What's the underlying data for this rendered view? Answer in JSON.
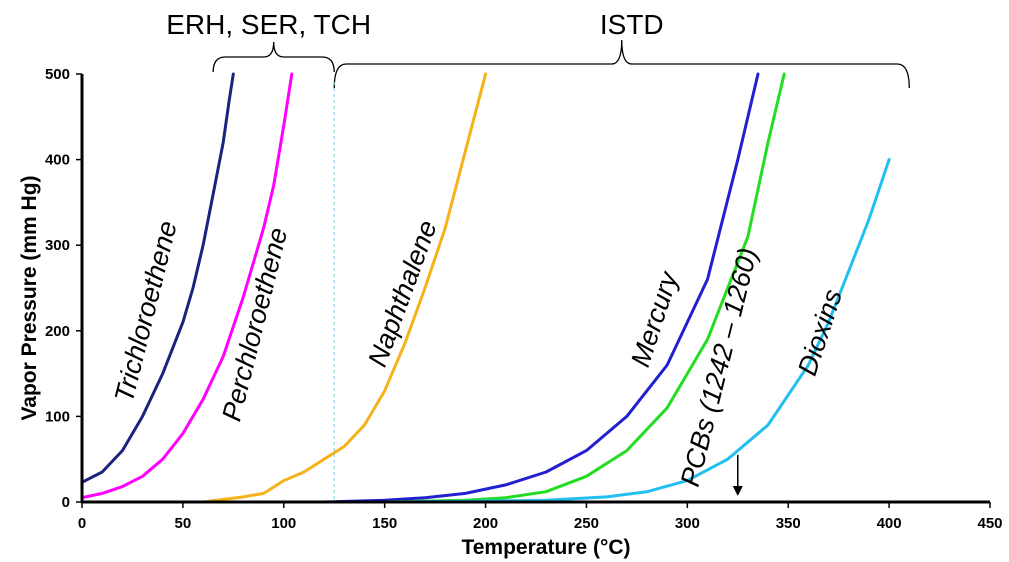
{
  "chart_data": {
    "type": "line",
    "title": "",
    "xlabel": "Temperature (°C)",
    "ylabel": "Vapor Pressure (mm Hg)",
    "xlim": [
      0,
      450
    ],
    "ylim": [
      0,
      500
    ],
    "xticks": [
      0,
      50,
      100,
      150,
      200,
      250,
      300,
      350,
      400,
      450
    ],
    "yticks": [
      0,
      100,
      200,
      300,
      400,
      500
    ],
    "grid": false,
    "legend": "none",
    "series": [
      {
        "name": "Trichloroethene",
        "color": "#1a237e",
        "x": [
          0,
          10,
          20,
          30,
          40,
          50,
          55,
          60,
          65,
          70,
          73,
          75
        ],
        "y": [
          23,
          35,
          60,
          100,
          150,
          210,
          250,
          300,
          360,
          420,
          470,
          500
        ]
      },
      {
        "name": "Perchloroethene",
        "color": "#ff00ff",
        "x": [
          0,
          10,
          20,
          30,
          40,
          50,
          60,
          70,
          80,
          90,
          95,
          100,
          104
        ],
        "y": [
          5,
          10,
          18,
          30,
          50,
          80,
          120,
          170,
          240,
          320,
          370,
          440,
          500
        ]
      },
      {
        "name": "Naphthalene",
        "color": "#f5b21a",
        "x": [
          60,
          80,
          90,
          100,
          110,
          120,
          130,
          140,
          150,
          160,
          170,
          180,
          190,
          200
        ],
        "y": [
          0,
          6,
          10,
          25,
          35,
          50,
          65,
          90,
          130,
          185,
          250,
          320,
          410,
          500
        ]
      },
      {
        "name": "Mercury",
        "color": "#2020d0",
        "x": [
          120,
          150,
          170,
          190,
          210,
          230,
          250,
          270,
          290,
          310,
          325,
          335
        ],
        "y": [
          0,
          2,
          5,
          10,
          20,
          35,
          60,
          100,
          160,
          260,
          400,
          500
        ]
      },
      {
        "name": "PCBs (1242 – 1260)",
        "color": "#22dd22",
        "x": [
          150,
          190,
          210,
          230,
          250,
          270,
          290,
          310,
          330,
          340,
          348
        ],
        "y": [
          0,
          2,
          5,
          12,
          30,
          60,
          110,
          190,
          310,
          420,
          500
        ]
      },
      {
        "name": "Dioxins",
        "color": "#22c0f0",
        "x": [
          150,
          230,
          260,
          280,
          300,
          320,
          340,
          360,
          370,
          380,
          390,
          400
        ],
        "y": [
          0,
          2,
          6,
          12,
          25,
          50,
          90,
          160,
          210,
          270,
          330,
          400
        ]
      }
    ],
    "annotations": [
      {
        "text": "ERH, SER, TCH",
        "x_from": 65,
        "x_to": 125
      },
      {
        "text": "ISTD",
        "x_from": 125,
        "x_to": 410
      },
      {
        "type": "dashed-vline",
        "x": 125
      },
      {
        "type": "arrow",
        "x": 325,
        "y_from": 55,
        "y_to": 0
      }
    ]
  }
}
